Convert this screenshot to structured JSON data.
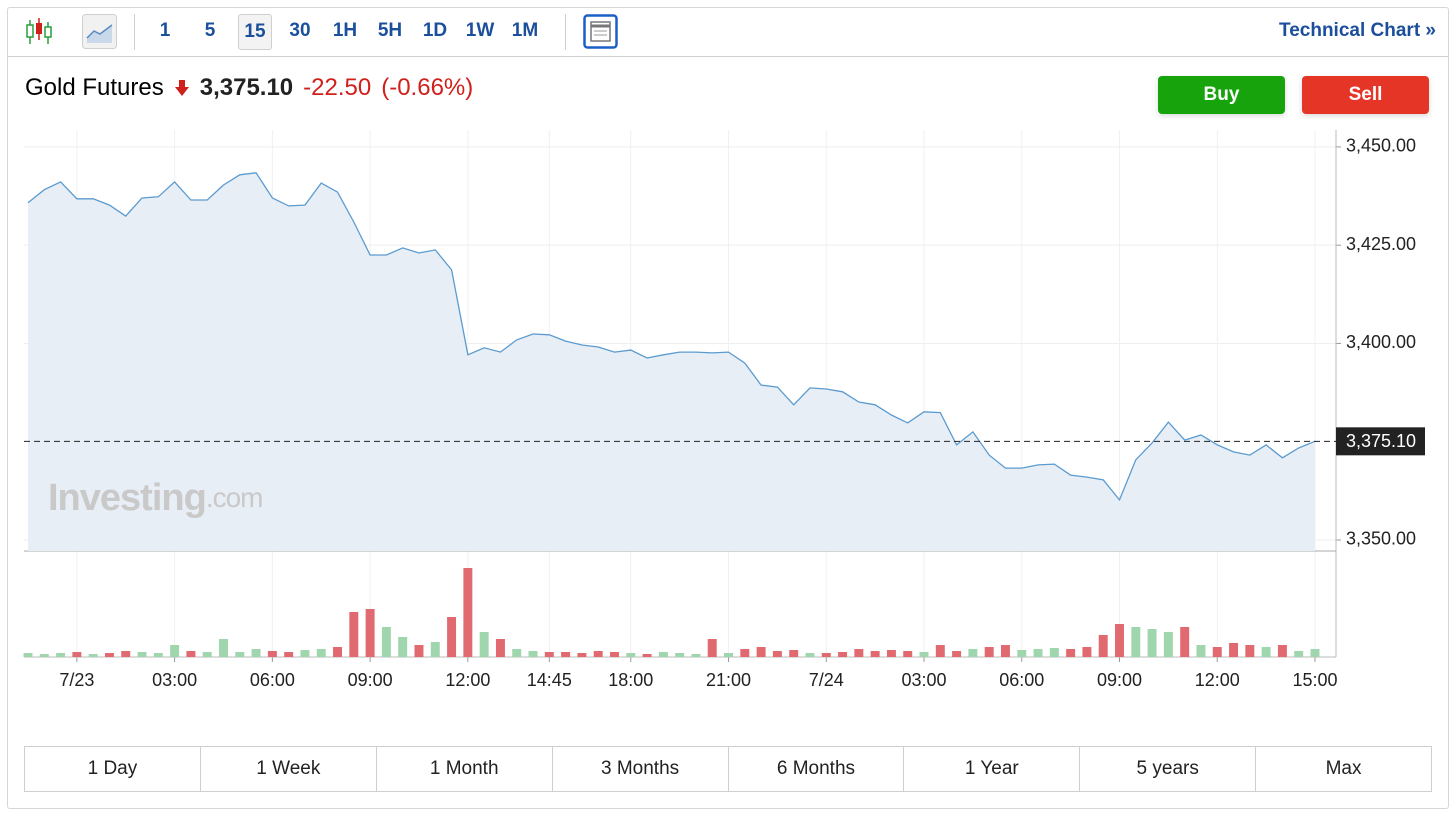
{
  "toolbar": {
    "intervals": [
      "1",
      "5",
      "15",
      "30",
      "1H",
      "5H",
      "1D",
      "1W",
      "1M"
    ],
    "link": "Technical Chart »"
  },
  "header": {
    "name": "Gold Futures",
    "change": "-22.50",
    "change_pct": "(-0.66%)"
  },
  "buttons": [
    "Buy",
    "Sell"
  ],
  "watermark": [
    "Investing",
    ".com"
  ],
  "ranges": [
    "1 Day",
    "1 Week",
    "1 Month",
    "3 Months",
    "6 Months",
    "1 Year",
    "5 years",
    "Max"
  ],
  "chart_data": {
    "type": "line",
    "color": "#5a9bd0",
    "area_color": "#e8eef6",
    "up_color": "#9fd6ad",
    "down_color": "#e06a6f",
    "grid": true,
    "categories": [
      null,
      null,
      null,
      "7/23",
      null,
      null,
      null,
      null,
      null,
      "03:00",
      null,
      null,
      null,
      null,
      null,
      "06:00",
      null,
      null,
      null,
      null,
      null,
      "09:00",
      null,
      null,
      null,
      null,
      null,
      "12:00",
      null,
      null,
      null,
      null,
      "14:45",
      null,
      null,
      null,
      null,
      "18:00",
      null,
      null,
      null,
      null,
      null,
      "21:00",
      null,
      null,
      null,
      null,
      null,
      "7/24",
      null,
      null,
      null,
      null,
      null,
      "03:00",
      null,
      null,
      null,
      null,
      null,
      "06:00",
      null,
      null,
      null,
      null,
      null,
      "09:00",
      null,
      null,
      null,
      null,
      null,
      "12:00",
      null,
      null,
      null,
      null,
      null,
      "15:00"
    ],
    "values": [
      3435.8,
      3439.1,
      3441.1,
      3436.8,
      3436.8,
      3435.2,
      3432.4,
      3437.0,
      3437.3,
      3441.1,
      3436.5,
      3436.5,
      3440.3,
      3442.9,
      3443.4,
      3437.0,
      3435.0,
      3435.2,
      3440.8,
      3438.5,
      3430.9,
      3422.5,
      3422.5,
      3424.3,
      3423.0,
      3423.8,
      3418.7,
      3397.1,
      3398.9,
      3397.8,
      3400.9,
      3402.4,
      3402.2,
      3400.6,
      3399.6,
      3399.1,
      3397.8,
      3398.3,
      3396.3,
      3397.1,
      3397.8,
      3397.8,
      3397.6,
      3397.8,
      3395.0,
      3389.4,
      3388.9,
      3384.4,
      3388.7,
      3388.4,
      3387.7,
      3385.1,
      3384.4,
      3381.8,
      3379.8,
      3382.6,
      3382.4,
      3374.2,
      3377.5,
      3371.6,
      3368.3,
      3368.3,
      3369.1,
      3369.3,
      3366.5,
      3366.0,
      3365.3,
      3360.2,
      3370.4,
      3374.7,
      3380.0,
      3375.4,
      3376.7,
      3374.2,
      3372.4,
      3371.6,
      3374.2,
      3370.9,
      3373.4,
      3375.1
    ],
    "volumes": [
      4,
      3,
      4,
      5,
      3,
      4,
      6,
      5,
      4,
      12,
      6,
      5,
      18,
      5,
      8,
      6,
      5,
      7,
      8,
      10,
      45,
      48,
      30,
      20,
      12,
      15,
      40,
      89,
      25,
      18,
      8,
      6,
      5,
      5,
      4,
      6,
      5,
      4,
      3,
      5,
      4,
      3,
      18,
      4,
      8,
      10,
      6,
      7,
      4,
      4,
      5,
      8,
      6,
      7,
      6,
      5,
      12,
      6,
      8,
      10,
      12,
      7,
      8,
      9,
      8,
      10,
      22,
      33,
      30,
      28,
      25,
      30,
      12,
      10,
      14,
      12,
      10,
      12,
      6,
      8
    ],
    "ylim": [
      3347.2,
      3454.3
    ],
    "yticks": [
      {
        "value": 3350,
        "label": "3,350.00"
      },
      {
        "value": 3400,
        "label": "3,400.00"
      },
      {
        "value": 3425,
        "label": "3,425.00"
      },
      {
        "value": 3450,
        "label": "3,450.00"
      }
    ],
    "last_price": {
      "value": 3375.1,
      "label": "3,375.10"
    }
  }
}
